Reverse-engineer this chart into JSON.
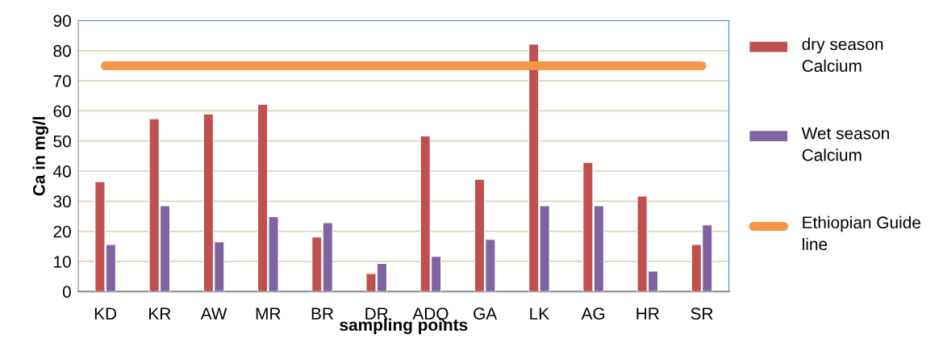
{
  "chart_data": {
    "type": "bar",
    "xlabel": "sampling points",
    "ylabel": "Ca in mg/l",
    "categories": [
      "KD",
      "KR",
      "AW",
      "MR",
      "BR",
      "DR",
      "ADQ",
      "GA",
      "LK",
      "AG",
      "HR",
      "SR"
    ],
    "series": [
      {
        "name": "dry season Calcium",
        "color": "#c0504d",
        "values": [
          36.5,
          57.4,
          59.0,
          62.2,
          18.1,
          6.0,
          51.7,
          37.3,
          82.2,
          42.9,
          31.7,
          15.6
        ]
      },
      {
        "name": "Wet season Calcium",
        "color": "#8064a2",
        "values": [
          15.6,
          28.5,
          16.5,
          24.9,
          22.9,
          9.3,
          11.7,
          17.3,
          28.5,
          28.5,
          6.8,
          22.1
        ]
      },
      {
        "name": "Ethiopian Guide line",
        "color": "#f79646",
        "type": "line",
        "values": [
          75,
          75,
          75,
          75,
          75,
          75,
          75,
          75,
          75,
          75,
          75,
          75
        ]
      }
    ],
    "ylim": [
      0,
      90
    ],
    "yticks": [
      0,
      10,
      20,
      30,
      40,
      50,
      60,
      70,
      80,
      90
    ],
    "grid": "y",
    "legend": "right"
  }
}
